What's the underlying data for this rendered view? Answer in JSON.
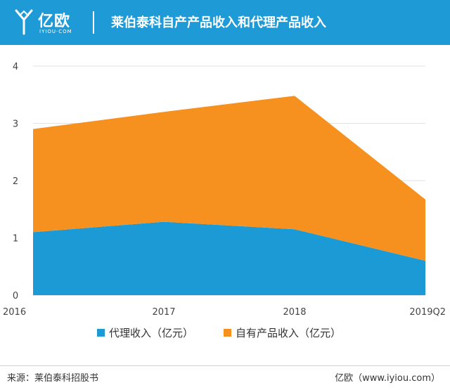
{
  "header": {
    "logo_text": "亿欧",
    "logo_sub": "IYIOU·COM",
    "title": "莱伯泰科自产产品收入和代理产品收入"
  },
  "colors": {
    "header_bg": "#1e9ad6",
    "agency": "#1c9ad6",
    "own": "#f6901e"
  },
  "chart_data": {
    "type": "area",
    "stacked": true,
    "categories": [
      "2016",
      "2017",
      "2018",
      "2019Q2"
    ],
    "series": [
      {
        "name": "代理收入（亿元）",
        "values": [
          1.1,
          1.28,
          1.15,
          0.6
        ],
        "color": "#1c9ad6"
      },
      {
        "name": "自有产品收入（亿元）",
        "values": [
          1.8,
          1.92,
          2.33,
          1.07
        ],
        "color": "#f6901e"
      }
    ],
    "yticks": [
      "0",
      "1",
      "2",
      "3",
      "4"
    ],
    "ylim": [
      0,
      4
    ],
    "grid": true,
    "legend": "bottom"
  },
  "footer": {
    "source": "来源：莱伯泰科招股书",
    "credit": "亿欧（www.iyiou.com）"
  }
}
